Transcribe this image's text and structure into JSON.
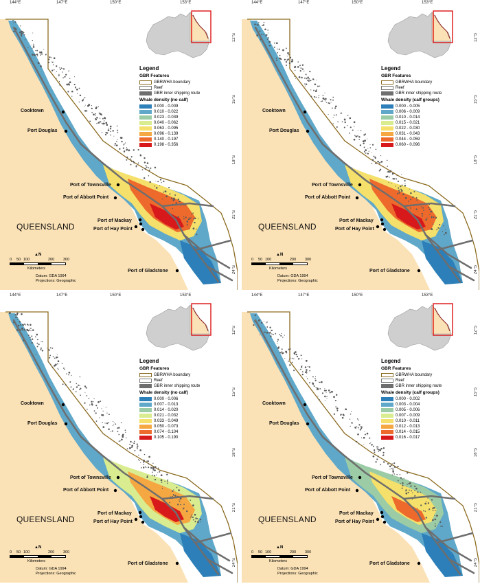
{
  "panels": [
    {
      "legend_title": "Legend",
      "features_title": "GBR Features",
      "features": [
        "GBRWHA boundary",
        "Reef",
        "GBR inner shipping route"
      ],
      "density_title": "Whale density (no calf)",
      "classes": [
        "0.000 - 0.009",
        "0.010 - 0.022",
        "0.023 - 0.039",
        "0.040 - 0.062",
        "0.063 - 0.095",
        "0.096 - 0.139",
        "0.140 - 0.197",
        "0.198 - 0.356"
      ]
    },
    {
      "legend_title": "Legend",
      "features_title": "GBR Features",
      "features": [
        "GBRWHA boundary",
        "Reef",
        "GBR inner shipping route"
      ],
      "density_title": "Whale density (calf groups)",
      "classes": [
        "0.000 - 0.005",
        "0.006 - 0.009",
        "0.010 - 0.014",
        "0.015 - 0.021",
        "0.022 - 0.030",
        "0.031 - 0.043",
        "0.044 - 0.059",
        "0.060 - 0.096"
      ]
    },
    {
      "legend_title": "Legend",
      "features_title": "GBR Features",
      "features": [
        "GBRWHA boundary",
        "Reef",
        "GBR inner shipping route"
      ],
      "density_title": "Whale density (no calf)",
      "classes": [
        "0.000 - 0.006",
        "0.007 - 0.013",
        "0.014 - 0.020",
        "0.021 - 0.032",
        "0.033 - 0.049",
        "0.050 - 0.073",
        "0.074 - 0.104",
        "0.105 - 0.190"
      ]
    },
    {
      "legend_title": "Legend",
      "features_title": "GBR Features",
      "features": [
        "GBRWHA boundary",
        "Reef",
        "GBR inner shipping route"
      ],
      "density_title": "Whale density (calf groups)",
      "classes": [
        "0.000 - 0.002",
        "0.003 - 0.004",
        "0.005 - 0.006",
        "0.007 - 0.009",
        "0.010 - 0.011",
        "0.012 - 0.013",
        "0.014 - 0.015",
        "0.016 - 0.017"
      ]
    }
  ],
  "common": {
    "places": [
      "Cooktown",
      "Port Douglas",
      "Port of Townsville",
      "Port of Abbott Point",
      "Port of Mackay",
      "Port of Hay Point",
      "Port of Gladstone"
    ],
    "region": "QUEENSLAND",
    "lon_ticks": [
      "144°E",
      "147°E",
      "150°E",
      "153°E"
    ],
    "lat_ticks": [
      "12°S",
      "15°S",
      "18°S",
      "21°S",
      "24°S"
    ],
    "scale_ticks": [
      "0",
      "50",
      "100",
      "200",
      "300"
    ],
    "scale_unit": "Kilometers",
    "north_label": "N",
    "datum": "Datum: GDA 1994",
    "projection": "Projections: Geographic"
  },
  "colors": {
    "land": "#fbe2b6",
    "boundary": "#8b6a1f",
    "route": "#6e6e6e",
    "ramp": [
      "#2c7fb8",
      "#5fa8c9",
      "#9ccca5",
      "#d9ec8f",
      "#f4e06a",
      "#f5a742",
      "#ee6a2c",
      "#d7191c"
    ]
  }
}
